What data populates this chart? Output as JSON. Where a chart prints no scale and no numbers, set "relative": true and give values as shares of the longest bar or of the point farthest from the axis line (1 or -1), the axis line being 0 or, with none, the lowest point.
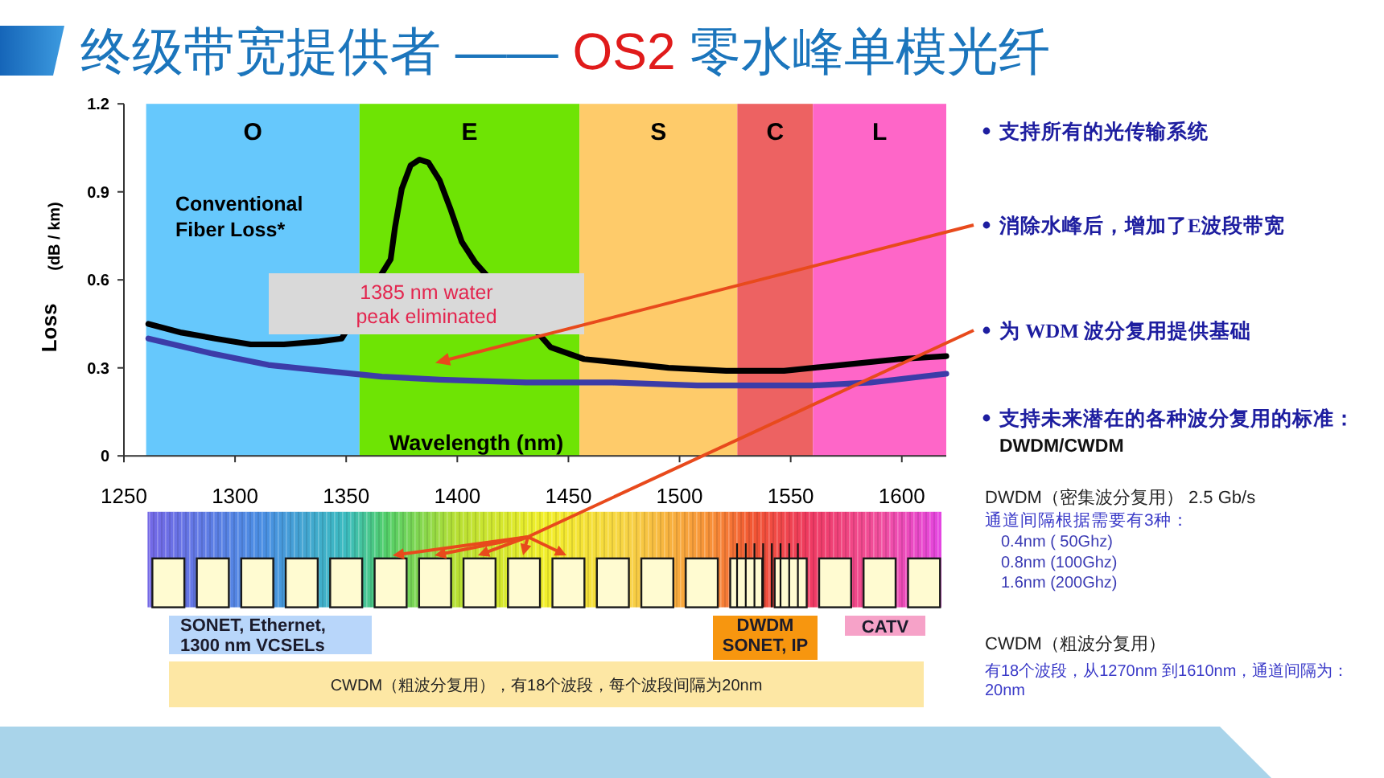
{
  "chart_data": [
    {
      "type": "line",
      "title": "终级带宽提供者 —— OS2 零水峰单模光纤",
      "xlabel": "Wavelength (nm)",
      "ylabel": "Loss",
      "xlim": [
        1250,
        1620
      ],
      "ylim": [
        0,
        1.2
      ],
      "xticks": [
        1250,
        1300,
        1350,
        1400,
        1450,
        1500,
        1550,
        1600
      ],
      "yticks": [
        0,
        0.3,
        0.6,
        0.9,
        1.2
      ],
      "series": [
        {
          "name": "Conventional Fiber Loss*",
          "color": "#000000",
          "x": [
            1261,
            1276,
            1291,
            1307,
            1322,
            1338,
            1348,
            1370,
            1372,
            1375,
            1379,
            1383,
            1387,
            1392,
            1397,
            1402,
            1408,
            1442,
            1457,
            1470,
            1495,
            1521,
            1547,
            1573,
            1599,
            1620
          ],
          "values": [
            0.45,
            0.42,
            0.4,
            0.38,
            0.38,
            0.39,
            0.4,
            0.67,
            0.78,
            0.91,
            0.99,
            1.01,
            1.0,
            0.94,
            0.84,
            0.73,
            0.66,
            0.37,
            0.33,
            0.32,
            0.3,
            0.29,
            0.29,
            0.31,
            0.33,
            0.34
          ]
        },
        {
          "color": "#3c3ca8",
          "x": [
            1261,
            1289,
            1315,
            1340,
            1366,
            1392,
            1431,
            1470,
            1508,
            1534,
            1560,
            1586,
            1620
          ],
          "values": [
            0.4,
            0.35,
            0.31,
            0.29,
            0.27,
            0.26,
            0.25,
            0.25,
            0.24,
            0.24,
            0.24,
            0.25,
            0.28
          ]
        }
      ],
      "bands": [
        {
          "axis": "x",
          "from": 1260,
          "to": 1356,
          "label": "O",
          "color": "#66c8fc"
        },
        {
          "axis": "x",
          "from": 1356,
          "to": 1455,
          "label": "E",
          "color": "#6ee404"
        },
        {
          "axis": "x",
          "from": 1455,
          "to": 1526,
          "label": "S",
          "color": "#fecb6a"
        },
        {
          "axis": "x",
          "from": 1526,
          "to": 1560,
          "label": "C",
          "color": "#ed6262"
        },
        {
          "axis": "x",
          "from": 1560,
          "to": 1620,
          "label": "L",
          "color": "#fe66c8"
        }
      ],
      "annotations": [
        "(dB / km)",
        "1385 nm water peak eliminated"
      ]
    },
    {
      "type": "bar",
      "relative": true,
      "x": [
        1270,
        1290,
        1310,
        1330,
        1350,
        1370,
        1390,
        1410,
        1430,
        1450,
        1470,
        1490,
        1510,
        1530,
        1550,
        1570,
        1590,
        1610
      ],
      "values": [
        1,
        1,
        1,
        1,
        1,
        1,
        1,
        1,
        1,
        1,
        1,
        1,
        1,
        1,
        1,
        1,
        1,
        1
      ],
      "color": "#fffbd1",
      "xlim": [
        1250,
        1620
      ],
      "tick_labels": false,
      "annotations": [
        "SONET, Ethernet, 1300 nm VCSELs",
        "DWDM SONET, IP",
        "CATV",
        "CWDM（粗波分复用），有18个波段，每个波段间隔为20nm"
      ]
    },
    {
      "type": "other",
      "annotations": [
        "支持所有的光传输系统",
        "消除水峰后，增加了E波段带宽",
        "为 WDM 波分复用提供基础",
        "支持未来潜在的各种波分复用的标准：",
        "DWDM/CWDM",
        "DWDM（密集波分复用） 2.5 Gb/s",
        "通道间隔根据需要有3种：",
        "0.4nm ( 50Ghz)",
        "0.8nm (100Ghz)",
        "1.6nm (200Ghz)",
        "CWDM（粗波分复用）",
        "有18个波段，从1270nm 到1610nm，通道间隔为：20nm"
      ]
    }
  ]
}
